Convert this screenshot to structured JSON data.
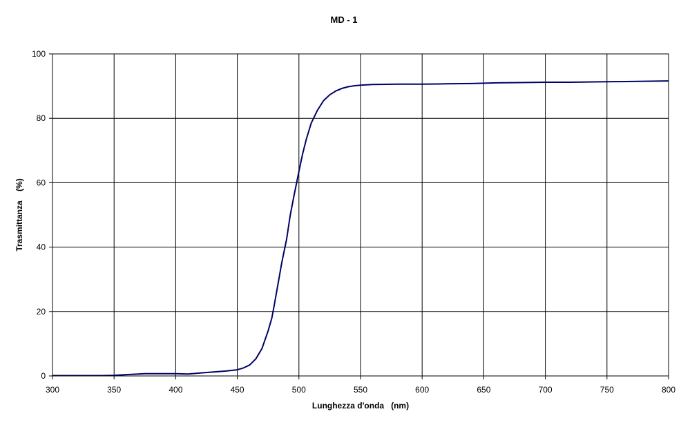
{
  "chart_data": {
    "type": "line",
    "title": "MD - 1",
    "xlabel": "Lunghezza d'onda   (nm)",
    "ylabel": "Trasmittanza    (%)",
    "xlim": [
      300,
      800
    ],
    "ylim": [
      0,
      100
    ],
    "xticks": [
      300,
      350,
      400,
      450,
      500,
      550,
      600,
      650,
      700,
      750,
      800
    ],
    "yticks": [
      0,
      20,
      40,
      60,
      80,
      100
    ],
    "grid": true,
    "legend": "none",
    "colors": {
      "line": "#000066",
      "grid": "#000000",
      "background": "#ffffff"
    },
    "series": [
      {
        "x": [
          300,
          340,
          350,
          360,
          375,
          400,
          410,
          420,
          430,
          440,
          450,
          455,
          460,
          465,
          470,
          475,
          478,
          480,
          483,
          486,
          490,
          493,
          496,
          500,
          503,
          506,
          510,
          515,
          520,
          525,
          530,
          535,
          540,
          545,
          550,
          560,
          580,
          600,
          620,
          640,
          660,
          680,
          700,
          720,
          740,
          760,
          780,
          800
        ],
        "y": [
          0.1,
          0.1,
          0.2,
          0.4,
          0.7,
          0.7,
          0.6,
          0.9,
          1.2,
          1.5,
          1.9,
          2.5,
          3.4,
          5.3,
          8.5,
          14.0,
          18.0,
          22.0,
          28.5,
          35.0,
          42.5,
          50.0,
          56.0,
          63.5,
          69.0,
          73.5,
          78.5,
          82.5,
          85.5,
          87.3,
          88.5,
          89.3,
          89.8,
          90.1,
          90.3,
          90.5,
          90.6,
          90.6,
          90.7,
          90.8,
          91.0,
          91.1,
          91.2,
          91.2,
          91.3,
          91.4,
          91.5,
          91.6
        ]
      }
    ]
  }
}
